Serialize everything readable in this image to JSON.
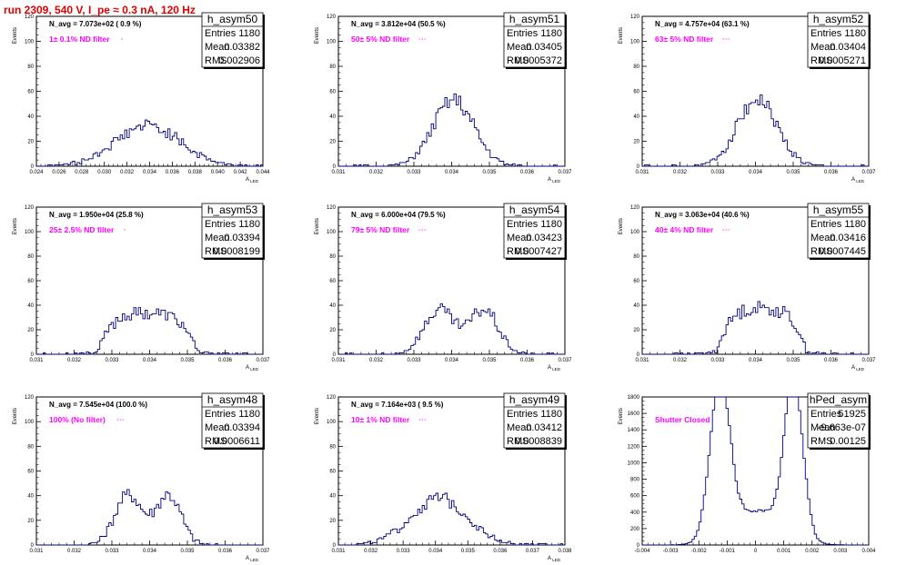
{
  "run_title": "run 2309,   540 V, I_pe ≈ 0.3 nA, 120 Hz",
  "stats_labels": {
    "entries": "Entries",
    "mean": "Mean",
    "rms": "RMS"
  },
  "chart_data": [
    {
      "type": "histogram",
      "title": "h_asym50",
      "navg_text": "N_avg = 7.073e+02 ( 0.9 %)",
      "filter_text": "1± 0.1% ND filter",
      "ylabel": "Events",
      "xlabel": "A_LED",
      "xlim": [
        0.024,
        0.044
      ],
      "ylim": [
        0,
        120
      ],
      "xticks": [
        0.024,
        0.026,
        0.028,
        0.03,
        0.032,
        0.034,
        0.036,
        0.038,
        0.04,
        0.042,
        0.044
      ],
      "yticks": [
        0,
        20,
        40,
        60,
        80,
        100,
        120
      ],
      "stats": {
        "entries": "1180",
        "mean": "0.03382",
        "rms": "0.002906"
      },
      "dist": {
        "mu": 0.03382,
        "sigma": 0.0029,
        "n": 1180,
        "bins": 100,
        "seed": 50
      }
    },
    {
      "type": "histogram",
      "title": "h_asym51",
      "navg_text": "N_avg = 3.812e+04 (50.5 %)",
      "filter_text": "50± 5% ND filter",
      "ylabel": "Events",
      "xlabel": "A_LED",
      "xlim": [
        0.031,
        0.037
      ],
      "ylim": [
        0,
        120
      ],
      "xticks": [
        0.031,
        0.032,
        0.033,
        0.034,
        0.035,
        0.036,
        0.037
      ],
      "yticks": [
        0,
        20,
        40,
        60,
        80,
        100,
        120
      ],
      "stats": {
        "entries": "1180",
        "mean": "0.03405",
        "rms": "0.0005372"
      },
      "dist": {
        "mu": 0.03405,
        "sigma": 0.000537,
        "n": 1180,
        "bins": 100,
        "seed": 51
      }
    },
    {
      "type": "histogram",
      "title": "h_asym52",
      "navg_text": "N_avg = 4.757e+04 (63.1 %)",
      "filter_text": "63± 5% ND filter",
      "ylabel": "Events",
      "xlabel": "A_LED",
      "xlim": [
        0.031,
        0.037
      ],
      "ylim": [
        0,
        120
      ],
      "xticks": [
        0.031,
        0.032,
        0.033,
        0.034,
        0.035,
        0.036,
        0.037
      ],
      "yticks": [
        0,
        20,
        40,
        60,
        80,
        100,
        120
      ],
      "stats": {
        "entries": "1180",
        "mean": "0.03404",
        "rms": "0.0005271"
      },
      "dist": {
        "mu": 0.03404,
        "sigma": 0.000527,
        "n": 1180,
        "bins": 100,
        "seed": 52
      }
    },
    {
      "type": "histogram",
      "title": "h_asym53",
      "navg_text": "N_avg = 1.950e+04 (25.8 %)",
      "filter_text": "25± 2.5% ND filter",
      "ylabel": "Events",
      "xlabel": "A_LED",
      "xlim": [
        0.031,
        0.037
      ],
      "ylim": [
        0,
        120
      ],
      "xticks": [
        0.031,
        0.032,
        0.033,
        0.034,
        0.035,
        0.036,
        0.037
      ],
      "yticks": [
        0,
        20,
        40,
        60,
        80,
        100,
        120
      ],
      "stats": {
        "entries": "1180",
        "mean": "0.03394",
        "rms": "0.0008199"
      },
      "dist": {
        "mu": 0.03394,
        "sigma": 0.00082,
        "n": 1180,
        "bins": 100,
        "seed": 53,
        "shape": "flat"
      }
    },
    {
      "type": "histogram",
      "title": "h_asym54",
      "navg_text": "N_avg = 6.000e+04 (79.5 %)",
      "filter_text": "79± 5% ND filter",
      "ylabel": "Events",
      "xlabel": "A_LED",
      "xlim": [
        0.031,
        0.037
      ],
      "ylim": [
        0,
        120
      ],
      "xticks": [
        0.031,
        0.032,
        0.033,
        0.034,
        0.035,
        0.036,
        0.037
      ],
      "yticks": [
        0,
        20,
        40,
        60,
        80,
        100,
        120
      ],
      "stats": {
        "entries": "1180",
        "mean": "0.03423",
        "rms": "0.0007427"
      },
      "dist": {
        "mu": 0.03423,
        "sigma": 0.00074,
        "n": 1180,
        "bins": 100,
        "seed": 54,
        "shape": "double"
      }
    },
    {
      "type": "histogram",
      "title": "h_asym55",
      "navg_text": "N_avg = 3.063e+04 (40.6 %)",
      "filter_text": "40± 4% ND filter",
      "ylabel": "Events",
      "xlabel": "A_LED",
      "xlim": [
        0.031,
        0.037
      ],
      "ylim": [
        0,
        120
      ],
      "xticks": [
        0.031,
        0.032,
        0.033,
        0.034,
        0.035,
        0.036,
        0.037
      ],
      "yticks": [
        0,
        20,
        40,
        60,
        80,
        100,
        120
      ],
      "stats": {
        "entries": "1180",
        "mean": "0.03416",
        "rms": "0.0007445"
      },
      "dist": {
        "mu": 0.03416,
        "sigma": 0.00074,
        "n": 1180,
        "bins": 100,
        "seed": 55,
        "shape": "flat"
      }
    },
    {
      "type": "histogram",
      "title": "h_asym48",
      "navg_text": "N_avg = 7.545e+04 (100.0 %)",
      "filter_text": "100% (No filter)",
      "ylabel": "Events",
      "xlabel": "A_LED",
      "xlim": [
        0.031,
        0.037
      ],
      "ylim": [
        0,
        120
      ],
      "xticks": [
        0.031,
        0.032,
        0.033,
        0.034,
        0.035,
        0.036,
        0.037
      ],
      "yticks": [
        0,
        20,
        40,
        60,
        80,
        100,
        120
      ],
      "stats": {
        "entries": "1180",
        "mean": "0.03394",
        "rms": "0.0006611"
      },
      "dist": {
        "mu": 0.03394,
        "sigma": 0.00066,
        "n": 1180,
        "bins": 100,
        "seed": 48,
        "shape": "double"
      }
    },
    {
      "type": "histogram",
      "title": "h_asym49",
      "navg_text": "N_avg = 7.164e+03 ( 9.5 %)",
      "filter_text": "10± 1% ND filter",
      "ylabel": "Events",
      "xlabel": "A_LED",
      "xlim": [
        0.031,
        0.038
      ],
      "ylim": [
        0,
        120
      ],
      "xticks": [
        0.031,
        0.032,
        0.033,
        0.034,
        0.035,
        0.036,
        0.037,
        0.038
      ],
      "yticks": [
        0,
        20,
        40,
        60,
        80,
        100,
        120
      ],
      "stats": {
        "entries": "1180",
        "mean": "0.03412",
        "rms": "0.0008839"
      },
      "dist": {
        "mu": 0.03412,
        "sigma": 0.00088,
        "n": 1180,
        "bins": 100,
        "seed": 49
      }
    },
    {
      "type": "histogram",
      "title": "hPed_asym",
      "navg_text": "",
      "filter_text": "Shutter Closed",
      "ylabel": "Events",
      "xlabel": "",
      "xlim": [
        -0.004,
        0.004
      ],
      "ylim": [
        0,
        1800
      ],
      "xticks": [
        -0.004,
        -0.003,
        -0.002,
        -0.001,
        0,
        0.001,
        0.002,
        0.003,
        0.004
      ],
      "yticks": [
        0,
        200,
        400,
        600,
        800,
        1000,
        1200,
        1400,
        1600,
        1800
      ],
      "stats": {
        "entries": "51925",
        "mean": "-9.663e-07",
        "rms": "0.00125"
      },
      "dist": {
        "mu": 0,
        "sigma": 0.00125,
        "n": 51925,
        "bins": 100,
        "seed": 99,
        "shape": "ped"
      }
    }
  ]
}
